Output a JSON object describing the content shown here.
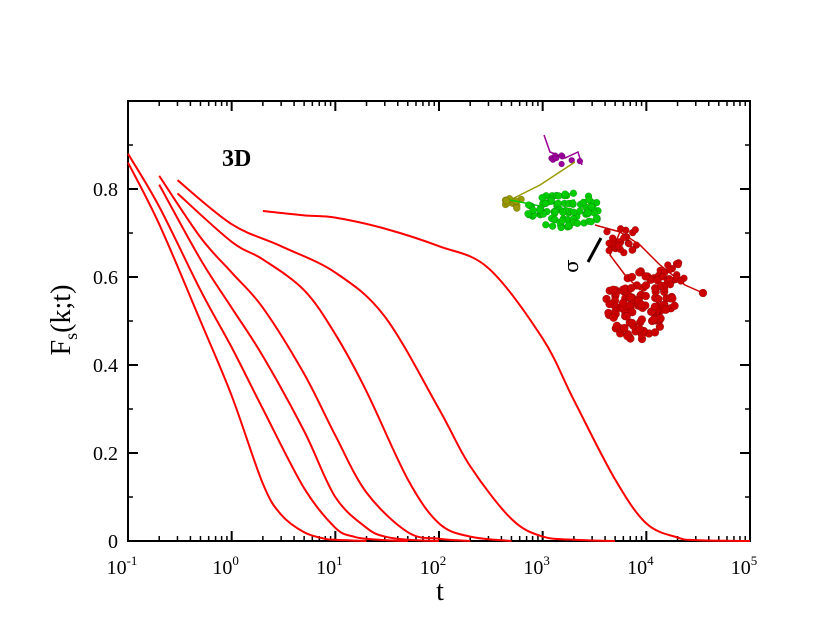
{
  "chart_data": {
    "type": "line",
    "title": "",
    "xlabel": "t",
    "ylabel_main": "F",
    "ylabel_sub": "s",
    "ylabel_args": "(k;t)",
    "x_scale": "log",
    "xlim": [
      0.1,
      100000
    ],
    "ylim": [
      0,
      1
    ],
    "x_ticks": [
      {
        "base": "10",
        "exp": "-1",
        "value": 0.1
      },
      {
        "base": "10",
        "exp": "0",
        "value": 1
      },
      {
        "base": "10",
        "exp": "1",
        "value": 10
      },
      {
        "base": "10",
        "exp": "2",
        "value": 100
      },
      {
        "base": "10",
        "exp": "3",
        "value": 1000
      },
      {
        "base": "10",
        "exp": "4",
        "value": 10000
      },
      {
        "base": "10",
        "exp": "5",
        "value": 100000
      }
    ],
    "y_ticks": [
      {
        "label": "0",
        "value": 0
      },
      {
        "label": "0.2",
        "value": 0.2
      },
      {
        "label": "0.4",
        "value": 0.4
      },
      {
        "label": "0.6",
        "value": 0.6
      },
      {
        "label": "0.8",
        "value": 0.8
      }
    ],
    "grid": false,
    "annotation": "3D",
    "inset_label": "σ",
    "line_color": "#ff0000",
    "series": [
      {
        "x": [
          0.1,
          0.2,
          0.5,
          1,
          2,
          3,
          5,
          8,
          10,
          15,
          20
        ],
        "y": [
          0.86,
          0.72,
          0.5,
          0.33,
          0.13,
          0.06,
          0.02,
          0.005,
          0.003,
          0.001,
          0.0
        ]
      },
      {
        "x": [
          0.1,
          0.2,
          0.5,
          1,
          2,
          5,
          10,
          15,
          20,
          30,
          50
        ],
        "y": [
          0.88,
          0.76,
          0.57,
          0.44,
          0.3,
          0.12,
          0.03,
          0.01,
          0.005,
          0.002,
          0.0
        ]
      },
      {
        "x": [
          0.2,
          0.5,
          1,
          2,
          5,
          10,
          20,
          30,
          50,
          100
        ],
        "y": [
          0.81,
          0.64,
          0.53,
          0.42,
          0.25,
          0.1,
          0.03,
          0.01,
          0.003,
          0.0
        ]
      },
      {
        "x": [
          0.2,
          0.5,
          1,
          2,
          5,
          10,
          20,
          50,
          100,
          200
        ],
        "y": [
          0.83,
          0.69,
          0.61,
          0.53,
          0.38,
          0.24,
          0.11,
          0.02,
          0.005,
          0.0
        ]
      },
      {
        "x": [
          0.3,
          1,
          2,
          5,
          10,
          20,
          50,
          100,
          200,
          500
        ],
        "y": [
          0.79,
          0.68,
          0.64,
          0.57,
          0.47,
          0.34,
          0.14,
          0.04,
          0.01,
          0.0
        ]
      },
      {
        "x": [
          0.3,
          1,
          3,
          10,
          30,
          100,
          200,
          500,
          1000,
          2000,
          5000
        ],
        "y": [
          0.82,
          0.72,
          0.67,
          0.61,
          0.51,
          0.3,
          0.17,
          0.05,
          0.01,
          0.003,
          0.0
        ]
      },
      {
        "x": [
          2,
          5,
          10,
          30,
          100,
          300,
          1000,
          2000,
          5000,
          10000,
          20000,
          30000,
          100000
        ],
        "y": [
          0.75,
          0.74,
          0.735,
          0.71,
          0.67,
          0.62,
          0.46,
          0.32,
          0.14,
          0.04,
          0.008,
          0.002,
          0.0
        ]
      }
    ]
  },
  "inset": {
    "chain_colors": [
      "#990099",
      "#999900",
      "#00cc00",
      "#cc0000"
    ]
  }
}
